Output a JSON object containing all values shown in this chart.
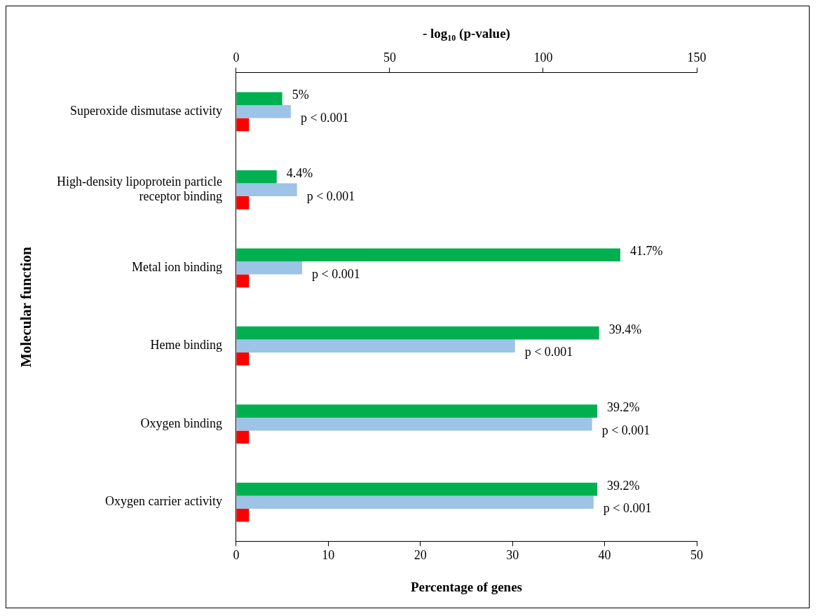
{
  "chart_data": {
    "type": "bar",
    "orientation": "horizontal",
    "categories": [
      "Superoxide dismutase activity",
      "High-density lipoprotein particle receptor binding",
      "Metal ion binding",
      "Heme binding",
      "Oxygen binding",
      "Oxygen carrier activity"
    ],
    "series": [
      {
        "color": "#00b050",
        "values": [
          5,
          4.4,
          41.7,
          39.4,
          39.2,
          39.2
        ],
        "value_labels": [
          "5%",
          "4.4%",
          "41.7%",
          "39.4%",
          "39.2%",
          "39.2%"
        ]
      },
      {
        "color": "#9dc3e6",
        "axis": "x2",
        "values": [
          17.8,
          19.8,
          21.5,
          90.8,
          115.9,
          116.4
        ],
        "value_labels": [
          "p < 0.001",
          "p < 0.001",
          "p < 0.001",
          "p < 0.001",
          "p < 0.001",
          "p < 0.001"
        ]
      },
      {
        "color": "#ff0000",
        "values": [
          1.4,
          1.4,
          1.4,
          1.4,
          1.4,
          1.4
        ]
      }
    ],
    "xlabel": "Percentage of genes",
    "x2label": "- log$_{10}$ (p-value)",
    "ylabel": "Molecular function",
    "xlim": [
      0,
      50
    ],
    "xticks": [
      0,
      10,
      20,
      30,
      40,
      50
    ],
    "x2lim": [
      0,
      150
    ],
    "x2ticks": [
      0,
      50,
      100,
      150
    ],
    "grid": false,
    "legend": false
  }
}
